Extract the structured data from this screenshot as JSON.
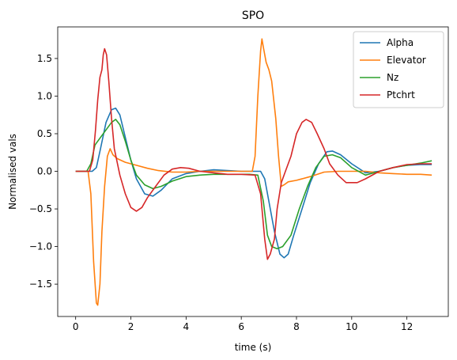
{
  "chart_data": {
    "type": "line",
    "title": "SPO",
    "xlabel": "time (s)",
    "ylabel": "Normalised vals",
    "xlim": [
      -0.65,
      13.5
    ],
    "ylim": [
      -1.93,
      1.92
    ],
    "xticks": [
      0,
      2,
      4,
      6,
      8,
      10,
      12
    ],
    "yticks": [
      -1.5,
      -1.0,
      -0.5,
      0.0,
      0.5,
      1.0,
      1.5
    ],
    "xtick_labels": [
      "0",
      "2",
      "4",
      "6",
      "8",
      "10",
      "12"
    ],
    "ytick_labels": [
      "−1.5",
      "−1.0",
      "−0.5",
      "0.0",
      "0.5",
      "1.0",
      "1.5"
    ],
    "grid": false,
    "legend_position": "top-right",
    "series": [
      {
        "name": "Alpha",
        "color": "#1f77b4",
        "points": [
          [
            0,
            0
          ],
          [
            0.6,
            0
          ],
          [
            0.75,
            0.05
          ],
          [
            0.9,
            0.3
          ],
          [
            1.1,
            0.65
          ],
          [
            1.3,
            0.82
          ],
          [
            1.45,
            0.84
          ],
          [
            1.6,
            0.75
          ],
          [
            1.8,
            0.45
          ],
          [
            2.0,
            0.15
          ],
          [
            2.2,
            -0.1
          ],
          [
            2.5,
            -0.3
          ],
          [
            2.8,
            -0.33
          ],
          [
            3.1,
            -0.25
          ],
          [
            3.5,
            -0.1
          ],
          [
            4.0,
            -0.03
          ],
          [
            4.5,
            0.0
          ],
          [
            5.0,
            0.02
          ],
          [
            5.5,
            0.01
          ],
          [
            6.0,
            0.0
          ],
          [
            6.5,
            0.0
          ],
          [
            6.7,
            0.0
          ],
          [
            6.85,
            -0.1
          ],
          [
            7.0,
            -0.4
          ],
          [
            7.2,
            -0.8
          ],
          [
            7.4,
            -1.1
          ],
          [
            7.55,
            -1.15
          ],
          [
            7.7,
            -1.1
          ],
          [
            7.9,
            -0.85
          ],
          [
            8.2,
            -0.5
          ],
          [
            8.5,
            -0.15
          ],
          [
            8.8,
            0.1
          ],
          [
            9.1,
            0.26
          ],
          [
            9.3,
            0.27
          ],
          [
            9.6,
            0.22
          ],
          [
            10.0,
            0.1
          ],
          [
            10.5,
            -0.02
          ],
          [
            11.0,
            0.0
          ],
          [
            11.5,
            0.05
          ],
          [
            12.0,
            0.08
          ],
          [
            12.5,
            0.09
          ],
          [
            12.9,
            0.09
          ]
        ]
      },
      {
        "name": "Elevator",
        "color": "#ff7f0e",
        "points": [
          [
            0,
            0
          ],
          [
            0.45,
            0
          ],
          [
            0.55,
            -0.3
          ],
          [
            0.65,
            -1.2
          ],
          [
            0.75,
            -1.75
          ],
          [
            0.8,
            -1.78
          ],
          [
            0.88,
            -1.5
          ],
          [
            0.95,
            -0.8
          ],
          [
            1.05,
            -0.2
          ],
          [
            1.15,
            0.2
          ],
          [
            1.25,
            0.3
          ],
          [
            1.35,
            0.22
          ],
          [
            1.5,
            0.17
          ],
          [
            1.8,
            0.12
          ],
          [
            2.2,
            0.08
          ],
          [
            2.6,
            0.04
          ],
          [
            3.0,
            0.01
          ],
          [
            3.5,
            -0.01
          ],
          [
            4.0,
            -0.01
          ],
          [
            4.5,
            0.0
          ],
          [
            5.0,
            0.0
          ],
          [
            5.5,
            0.0
          ],
          [
            6.0,
            0.0
          ],
          [
            6.4,
            0.0
          ],
          [
            6.5,
            0.2
          ],
          [
            6.6,
            1.0
          ],
          [
            6.7,
            1.6
          ],
          [
            6.75,
            1.76
          ],
          [
            6.8,
            1.65
          ],
          [
            6.9,
            1.45
          ],
          [
            7.0,
            1.35
          ],
          [
            7.1,
            1.2
          ],
          [
            7.25,
            0.7
          ],
          [
            7.35,
            0.2
          ],
          [
            7.45,
            -0.2
          ],
          [
            7.55,
            -0.18
          ],
          [
            7.7,
            -0.14
          ],
          [
            8.0,
            -0.12
          ],
          [
            8.5,
            -0.07
          ],
          [
            9.0,
            -0.01
          ],
          [
            9.5,
            0.0
          ],
          [
            10.0,
            0.0
          ],
          [
            10.5,
            0.0
          ],
          [
            11.0,
            -0.02
          ],
          [
            11.5,
            -0.03
          ],
          [
            12.0,
            -0.04
          ],
          [
            12.5,
            -0.04
          ],
          [
            12.9,
            -0.05
          ]
        ]
      },
      {
        "name": "Nz",
        "color": "#2ca02c",
        "points": [
          [
            0,
            0
          ],
          [
            0.4,
            0.0
          ],
          [
            0.55,
            0.1
          ],
          [
            0.7,
            0.35
          ],
          [
            0.9,
            0.45
          ],
          [
            1.1,
            0.55
          ],
          [
            1.3,
            0.65
          ],
          [
            1.45,
            0.69
          ],
          [
            1.6,
            0.62
          ],
          [
            1.8,
            0.4
          ],
          [
            2.0,
            0.15
          ],
          [
            2.2,
            -0.05
          ],
          [
            2.5,
            -0.18
          ],
          [
            2.8,
            -0.23
          ],
          [
            3.1,
            -0.2
          ],
          [
            3.5,
            -0.13
          ],
          [
            4.0,
            -0.07
          ],
          [
            4.5,
            -0.05
          ],
          [
            5.0,
            -0.04
          ],
          [
            5.5,
            -0.04
          ],
          [
            6.0,
            -0.04
          ],
          [
            6.3,
            -0.04
          ],
          [
            6.6,
            -0.05
          ],
          [
            6.8,
            -0.4
          ],
          [
            6.95,
            -0.85
          ],
          [
            7.1,
            -1.0
          ],
          [
            7.3,
            -1.03
          ],
          [
            7.5,
            -1.0
          ],
          [
            7.8,
            -0.85
          ],
          [
            8.1,
            -0.5
          ],
          [
            8.4,
            -0.2
          ],
          [
            8.7,
            0.05
          ],
          [
            9.0,
            0.2
          ],
          [
            9.3,
            0.22
          ],
          [
            9.6,
            0.18
          ],
          [
            10.0,
            0.05
          ],
          [
            10.5,
            -0.05
          ],
          [
            11.0,
            0.0
          ],
          [
            11.5,
            0.05
          ],
          [
            12.0,
            0.08
          ],
          [
            12.5,
            0.11
          ],
          [
            12.9,
            0.14
          ]
        ]
      },
      {
        "name": "Ptchrt",
        "color": "#d62728",
        "points": [
          [
            0,
            0
          ],
          [
            0.5,
            0.0
          ],
          [
            0.62,
            0.15
          ],
          [
            0.72,
            0.55
          ],
          [
            0.8,
            0.95
          ],
          [
            0.88,
            1.25
          ],
          [
            0.95,
            1.35
          ],
          [
            1.0,
            1.55
          ],
          [
            1.05,
            1.63
          ],
          [
            1.12,
            1.55
          ],
          [
            1.2,
            1.2
          ],
          [
            1.3,
            0.7
          ],
          [
            1.4,
            0.3
          ],
          [
            1.6,
            -0.05
          ],
          [
            1.8,
            -0.3
          ],
          [
            2.0,
            -0.48
          ],
          [
            2.2,
            -0.53
          ],
          [
            2.4,
            -0.48
          ],
          [
            2.6,
            -0.35
          ],
          [
            2.9,
            -0.2
          ],
          [
            3.2,
            -0.05
          ],
          [
            3.5,
            0.03
          ],
          [
            3.8,
            0.05
          ],
          [
            4.1,
            0.04
          ],
          [
            4.5,
            0.0
          ],
          [
            5.0,
            -0.02
          ],
          [
            5.5,
            -0.04
          ],
          [
            6.0,
            -0.04
          ],
          [
            6.5,
            -0.05
          ],
          [
            6.7,
            -0.3
          ],
          [
            6.85,
            -0.9
          ],
          [
            6.95,
            -1.17
          ],
          [
            7.05,
            -1.1
          ],
          [
            7.2,
            -0.9
          ],
          [
            7.3,
            -0.5
          ],
          [
            7.45,
            -0.15
          ],
          [
            7.6,
            0.0
          ],
          [
            7.8,
            0.2
          ],
          [
            8.0,
            0.5
          ],
          [
            8.2,
            0.65
          ],
          [
            8.35,
            0.69
          ],
          [
            8.55,
            0.65
          ],
          [
            8.75,
            0.5
          ],
          [
            9.0,
            0.3
          ],
          [
            9.2,
            0.1
          ],
          [
            9.5,
            -0.05
          ],
          [
            9.8,
            -0.15
          ],
          [
            10.2,
            -0.15
          ],
          [
            10.5,
            -0.1
          ],
          [
            11.0,
            0.0
          ],
          [
            11.5,
            0.05
          ],
          [
            12.0,
            0.09
          ],
          [
            12.5,
            0.1
          ],
          [
            12.9,
            0.1
          ]
        ]
      }
    ]
  }
}
